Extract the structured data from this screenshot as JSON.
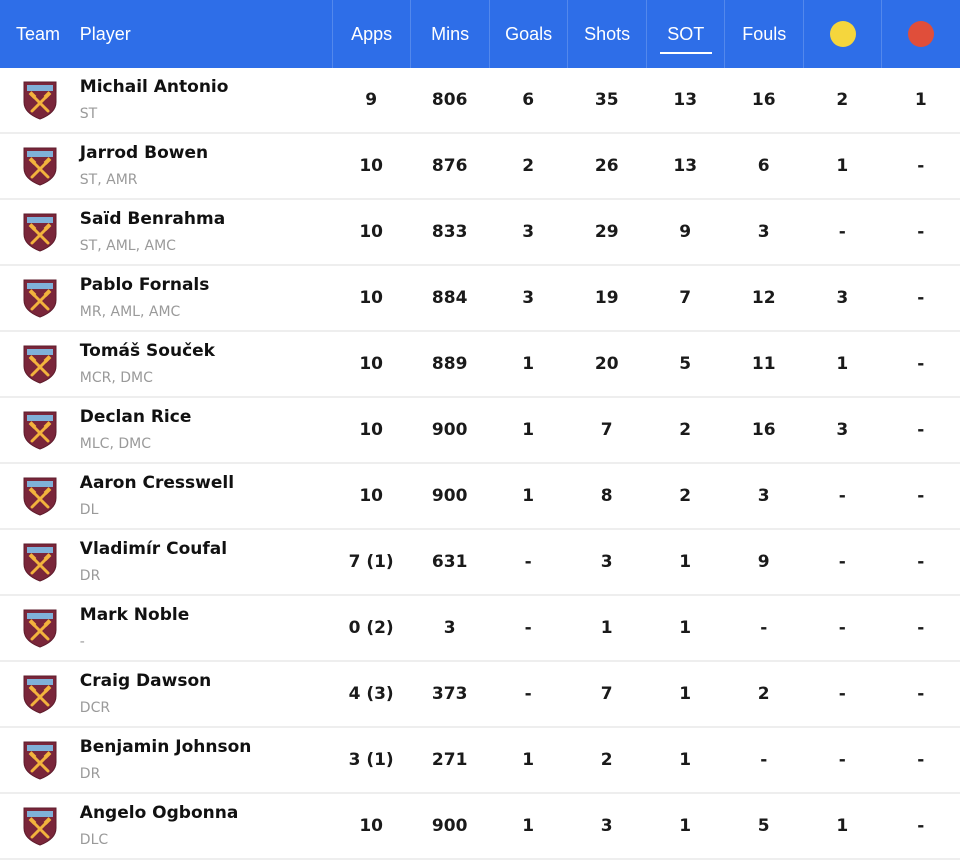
{
  "header": {
    "team": "Team",
    "player": "Player",
    "apps": "Apps",
    "mins": "Mins",
    "goals": "Goals",
    "shots": "Shots",
    "sot": "SOT",
    "fouls": "Fouls"
  },
  "colors": {
    "header_bg": "#2e6ee8",
    "yellow_card": "#f5d63d",
    "red_card": "#e04e3a",
    "crest_main": "#7a263a",
    "crest_accent": "#f2b33d"
  },
  "rows": [
    {
      "name": "Michail Antonio",
      "pos": "ST",
      "apps": "9",
      "mins": "806",
      "goals": "6",
      "shots": "35",
      "sot": "13",
      "fouls": "16",
      "yellow": "2",
      "red": "1"
    },
    {
      "name": "Jarrod Bowen",
      "pos": "ST, AMR",
      "apps": "10",
      "mins": "876",
      "goals": "2",
      "shots": "26",
      "sot": "13",
      "fouls": "6",
      "yellow": "1",
      "red": "-"
    },
    {
      "name": "Saïd Benrahma",
      "pos": "ST, AML, AMC",
      "apps": "10",
      "mins": "833",
      "goals": "3",
      "shots": "29",
      "sot": "9",
      "fouls": "3",
      "yellow": "-",
      "red": "-"
    },
    {
      "name": "Pablo Fornals",
      "pos": "MR, AML, AMC",
      "apps": "10",
      "mins": "884",
      "goals": "3",
      "shots": "19",
      "sot": "7",
      "fouls": "12",
      "yellow": "3",
      "red": "-"
    },
    {
      "name": "Tomáš Souček",
      "pos": "MCR, DMC",
      "apps": "10",
      "mins": "889",
      "goals": "1",
      "shots": "20",
      "sot": "5",
      "fouls": "11",
      "yellow": "1",
      "red": "-"
    },
    {
      "name": "Declan Rice",
      "pos": "MLC, DMC",
      "apps": "10",
      "mins": "900",
      "goals": "1",
      "shots": "7",
      "sot": "2",
      "fouls": "16",
      "yellow": "3",
      "red": "-"
    },
    {
      "name": "Aaron Cresswell",
      "pos": "DL",
      "apps": "10",
      "mins": "900",
      "goals": "1",
      "shots": "8",
      "sot": "2",
      "fouls": "3",
      "yellow": "-",
      "red": "-"
    },
    {
      "name": "Vladimír Coufal",
      "pos": "DR",
      "apps": "7 (1)",
      "mins": "631",
      "goals": "-",
      "shots": "3",
      "sot": "1",
      "fouls": "9",
      "yellow": "-",
      "red": "-"
    },
    {
      "name": "Mark Noble",
      "pos": "-",
      "apps": "0 (2)",
      "mins": "3",
      "goals": "-",
      "shots": "1",
      "sot": "1",
      "fouls": "-",
      "yellow": "-",
      "red": "-"
    },
    {
      "name": "Craig Dawson",
      "pos": "DCR",
      "apps": "4 (3)",
      "mins": "373",
      "goals": "-",
      "shots": "7",
      "sot": "1",
      "fouls": "2",
      "yellow": "-",
      "red": "-"
    },
    {
      "name": "Benjamin Johnson",
      "pos": "DR",
      "apps": "3 (1)",
      "mins": "271",
      "goals": "1",
      "shots": "2",
      "sot": "1",
      "fouls": "-",
      "yellow": "-",
      "red": "-"
    },
    {
      "name": "Angelo Ogbonna",
      "pos": "DLC",
      "apps": "10",
      "mins": "900",
      "goals": "1",
      "shots": "3",
      "sot": "1",
      "fouls": "5",
      "yellow": "1",
      "red": "-"
    }
  ]
}
